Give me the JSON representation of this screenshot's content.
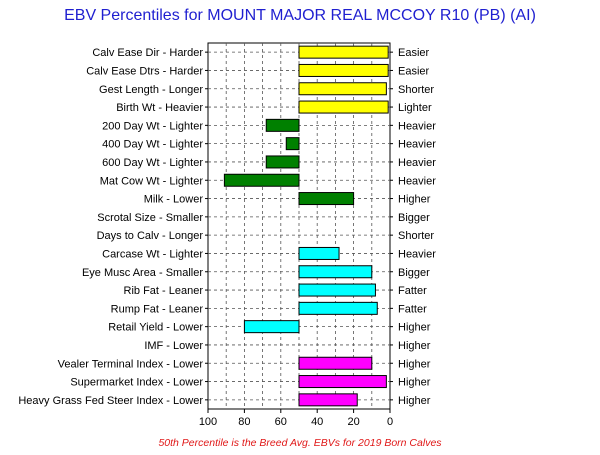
{
  "chart_data": {
    "type": "bar",
    "title": "EBV Percentiles for MOUNT MAJOR REAL MCCOY R10 (PB) (AI)",
    "footnote": "50th Percentile is the Breed Avg. EBVs for 2019 Born Calves",
    "xlim": [
      100,
      0
    ],
    "xticks": [
      "100",
      "80",
      "60",
      "40",
      "20",
      "0"
    ],
    "xtick_values": [
      100,
      80,
      60,
      40,
      20,
      0
    ],
    "baseline": 50,
    "grid": true,
    "rows": [
      {
        "left": "Calv Ease Dir - Harder",
        "right": "Easier",
        "value": 1,
        "color": "#ffff00"
      },
      {
        "left": "Calv Ease Dtrs - Harder",
        "right": "Easier",
        "value": 1,
        "color": "#ffff00"
      },
      {
        "left": "Gest Length - Longer",
        "right": "Shorter",
        "value": 2,
        "color": "#ffff00"
      },
      {
        "left": "Birth Wt - Heavier",
        "right": "Lighter",
        "value": 1,
        "color": "#ffff00"
      },
      {
        "left": "200 Day Wt - Lighter",
        "right": "Heavier",
        "value": 68,
        "color": "#008000"
      },
      {
        "left": "400 Day Wt - Lighter",
        "right": "Heavier",
        "value": 57,
        "color": "#008000"
      },
      {
        "left": "600 Day Wt - Lighter",
        "right": "Heavier",
        "value": 68,
        "color": "#008000"
      },
      {
        "left": "Mat Cow Wt - Lighter",
        "right": "Heavier",
        "value": 91,
        "color": "#008000"
      },
      {
        "left": "Milk - Lower",
        "right": "Higher",
        "value": 20,
        "color": "#008000"
      },
      {
        "left": "Scrotal Size - Smaller",
        "right": "Bigger",
        "value": null,
        "color": "#008000"
      },
      {
        "left": "Days to Calv - Longer",
        "right": "Shorter",
        "value": null,
        "color": "#008000"
      },
      {
        "left": "Carcase Wt - Lighter",
        "right": "Heavier",
        "value": 28,
        "color": "#00ffff"
      },
      {
        "left": "Eye Musc Area - Smaller",
        "right": "Bigger",
        "value": 10,
        "color": "#00ffff"
      },
      {
        "left": "Rib Fat - Leaner",
        "right": "Fatter",
        "value": 8,
        "color": "#00ffff"
      },
      {
        "left": "Rump Fat - Leaner",
        "right": "Fatter",
        "value": 7,
        "color": "#00ffff"
      },
      {
        "left": "Retail Yield - Lower",
        "right": "Higher",
        "value": 80,
        "color": "#00ffff"
      },
      {
        "left": "IMF - Lower",
        "right": "Higher",
        "value": null,
        "color": "#00ffff"
      },
      {
        "left": "Vealer Terminal Index - Lower",
        "right": "Higher",
        "value": 10,
        "color": "#ff00ff"
      },
      {
        "left": "Supermarket Index - Lower",
        "right": "Higher",
        "value": 2,
        "color": "#ff00ff"
      },
      {
        "left": "Heavy Grass Fed Steer Index - Lower",
        "right": "Higher",
        "value": 18,
        "color": "#ff00ff"
      }
    ]
  }
}
